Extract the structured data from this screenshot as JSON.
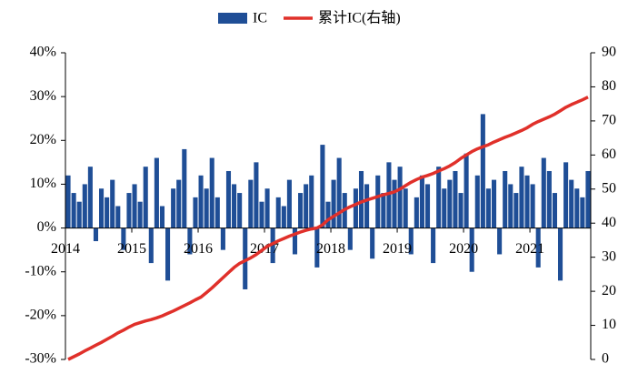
{
  "chart_data": {
    "type": "bar-line",
    "categories": [
      "2014",
      null,
      null,
      null,
      null,
      null,
      null,
      null,
      null,
      null,
      null,
      null,
      "2015",
      null,
      null,
      null,
      null,
      null,
      null,
      null,
      null,
      null,
      null,
      null,
      "2016",
      null,
      null,
      null,
      null,
      null,
      null,
      null,
      null,
      null,
      null,
      null,
      "2017",
      null,
      null,
      null,
      null,
      null,
      null,
      null,
      null,
      null,
      null,
      null,
      "2018",
      null,
      null,
      null,
      null,
      null,
      null,
      null,
      null,
      null,
      null,
      null,
      "2019",
      null,
      null,
      null,
      null,
      null,
      null,
      null,
      null,
      null,
      null,
      null,
      "2020",
      null,
      null,
      null,
      null,
      null,
      null,
      null,
      null,
      null,
      null,
      null,
      "2021",
      null,
      null,
      null,
      null,
      null,
      null,
      null,
      null,
      null,
      null
    ],
    "series": [
      {
        "name": "IC",
        "type": "bar",
        "color": "#1f4e96",
        "axis": "y",
        "values": [
          12,
          8,
          6,
          10,
          14,
          -3,
          9,
          7,
          11,
          5,
          -5,
          8,
          10,
          6,
          14,
          -8,
          16,
          5,
          -12,
          9,
          11,
          18,
          -6,
          7,
          12,
          9,
          16,
          7,
          -5,
          13,
          10,
          8,
          -14,
          11,
          15,
          6,
          9,
          -8,
          7,
          5,
          11,
          -6,
          8,
          10,
          12,
          -9,
          19,
          6,
          11,
          16,
          8,
          -5,
          9,
          13,
          10,
          -7,
          12,
          8,
          15,
          11,
          14,
          9,
          -6,
          7,
          12,
          10,
          -8,
          14,
          9,
          11,
          13,
          8,
          17,
          -10,
          12,
          26,
          9,
          11,
          -6,
          13,
          10,
          8,
          14,
          12,
          10,
          -9,
          16,
          13,
          8,
          -12,
          15,
          11,
          9,
          7,
          13
        ]
      },
      {
        "name": "累计IC(右轴)",
        "type": "line",
        "color": "#e0302a",
        "axis": "y2",
        "values": [
          0,
          0.8,
          1.6,
          2.5,
          3.3,
          4.2,
          5,
          5.9,
          6.8,
          7.8,
          8.6,
          9.5,
          10.3,
          10.8,
          11.3,
          11.7,
          12.2,
          12.8,
          13.5,
          14.2,
          15,
          15.8,
          16.6,
          17.5,
          18.3,
          19.6,
          21,
          22.5,
          24,
          25.5,
          27,
          28.2,
          29,
          29.8,
          30.8,
          32,
          33.2,
          34,
          34.8,
          35.5,
          36.2,
          36.8,
          37.4,
          37.9,
          38.3,
          38.6,
          39.5,
          41,
          42,
          43,
          44,
          44.8,
          45.5,
          46.2,
          46.8,
          47.3,
          47.8,
          48.3,
          48.7,
          49.2,
          50,
          51,
          52,
          52.8,
          53.5,
          54,
          54.6,
          55.3,
          56,
          56.8,
          57.8,
          59,
          60,
          61,
          61.8,
          62.4,
          63,
          63.8,
          64.5,
          65.2,
          65.8,
          66.5,
          67.2,
          68,
          69,
          69.8,
          70.5,
          71.2,
          72,
          73,
          74,
          74.8,
          75.5,
          76.2,
          77
        ]
      }
    ],
    "ylim": [
      -30,
      40
    ],
    "yticks": [
      {
        "value": -30,
        "label": "-30%"
      },
      {
        "value": -20,
        "label": "-20%"
      },
      {
        "value": -10,
        "label": "-10%"
      },
      {
        "value": 0,
        "label": "0%"
      },
      {
        "value": 10,
        "label": "10%"
      },
      {
        "value": 20,
        "label": "20%"
      },
      {
        "value": 30,
        "label": "30%"
      },
      {
        "value": 40,
        "label": "40%"
      }
    ],
    "y2lim": [
      0,
      90
    ],
    "y2ticks": [
      0,
      10,
      20,
      30,
      40,
      50,
      60,
      70,
      80,
      90
    ],
    "legend": "top"
  }
}
